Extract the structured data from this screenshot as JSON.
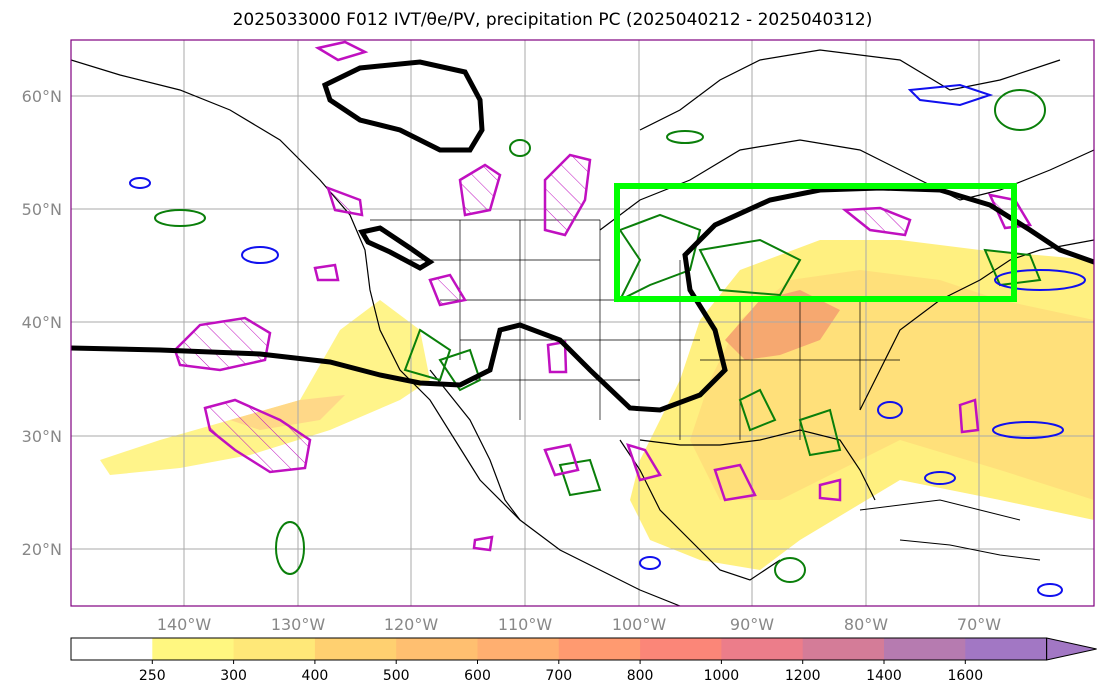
{
  "title": "2025033000 F012 IVT/θe/PV, precipitation PC (2025040212 - 2025040312)",
  "lat_labels": [
    "60°N",
    "50°N",
    "40°N",
    "30°N",
    "20°N"
  ],
  "lon_labels": [
    "140°W",
    "130°W",
    "120°W",
    "110°W",
    "100°W",
    "90°W",
    "80°W",
    "70°W"
  ],
  "colorbar": {
    "ticks": [
      "250",
      "300",
      "400",
      "500",
      "600",
      "700",
      "800",
      "1000",
      "1200",
      "1400",
      "1600"
    ],
    "colors": [
      "#ffffff",
      "#fff780",
      "#ffe878",
      "#ffd070",
      "#ffbf70",
      "#ffaf70",
      "#ff9a70",
      "#fb8678",
      "#ec7d8a",
      "#d47c98",
      "#b67bb0",
      "#a277c4"
    ]
  },
  "colors": {
    "ivt_fill": "#ffe070",
    "pv_contour": "#0a7f0a",
    "theta_e_contour": "#1010ee",
    "precip_pc_contour": "#c010c0",
    "jet_line": "#000000",
    "highlight_box": "#00ff00",
    "coastline": "#000000",
    "grid": "#aaaaaa"
  },
  "map_extent": {
    "lon": [
      -150,
      -59
    ],
    "lat": [
      15,
      65
    ]
  }
}
